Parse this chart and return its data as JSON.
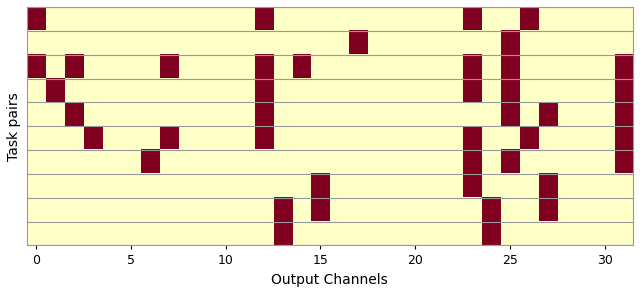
{
  "n_channels": 32,
  "n_rows": 10,
  "background_color": "#FFFFC8",
  "active_color": "#800020",
  "border_color": "#999999",
  "xlabel": "Output Channels",
  "ylabel": "Task pairs",
  "rows": [
    [
      13,
      24
    ],
    [
      13,
      15,
      24,
      27
    ],
    [
      15,
      23,
      27
    ],
    [
      6,
      23,
      25,
      31
    ],
    [
      3,
      7,
      12,
      23,
      26,
      31
    ],
    [
      2,
      12,
      25,
      27,
      31
    ],
    [
      1,
      12,
      23,
      25,
      31
    ],
    [
      0,
      2,
      7,
      12,
      14,
      23,
      25,
      31
    ],
    [
      17,
      25
    ],
    [
      0,
      12,
      23,
      26
    ]
  ],
  "xlim": [
    -0.5,
    31.5
  ],
  "xticks": [
    0,
    5,
    10,
    15,
    20,
    25,
    30
  ],
  "xtick_labels": [
    "0",
    "5",
    "10",
    "15",
    "20",
    "25",
    "30"
  ],
  "figsize": [
    6.4,
    2.94
  ],
  "dpi": 100
}
